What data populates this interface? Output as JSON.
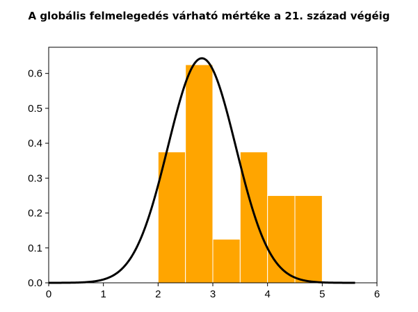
{
  "chart_data": {
    "type": "bar",
    "title": "A globális felmelegedés várható mértéke a 21. század végéig",
    "xlabel": "",
    "ylabel": "",
    "xlim": [
      0,
      6
    ],
    "ylim": [
      0,
      0.675
    ],
    "xticks": [
      "0",
      "1",
      "2",
      "3",
      "4",
      "5",
      "6"
    ],
    "yticks": [
      "0.0",
      "0.1",
      "0.2",
      "0.3",
      "0.4",
      "0.5",
      "0.6"
    ],
    "grid": false,
    "bar_color": "#FFA500",
    "bins": [
      {
        "x0": 2.0,
        "x1": 2.5,
        "value": 0.375
      },
      {
        "x0": 2.5,
        "x1": 3.0,
        "value": 0.625
      },
      {
        "x0": 3.0,
        "x1": 3.5,
        "value": 0.125
      },
      {
        "x0": 3.5,
        "x1": 4.0,
        "value": 0.375
      },
      {
        "x0": 4.0,
        "x1": 4.5,
        "value": 0.25
      },
      {
        "x0": 4.5,
        "x1": 5.0,
        "value": 0.25
      }
    ],
    "curve": {
      "type": "normal-density",
      "mean": 2.8,
      "sd": 0.62,
      "color": "#000000"
    }
  }
}
